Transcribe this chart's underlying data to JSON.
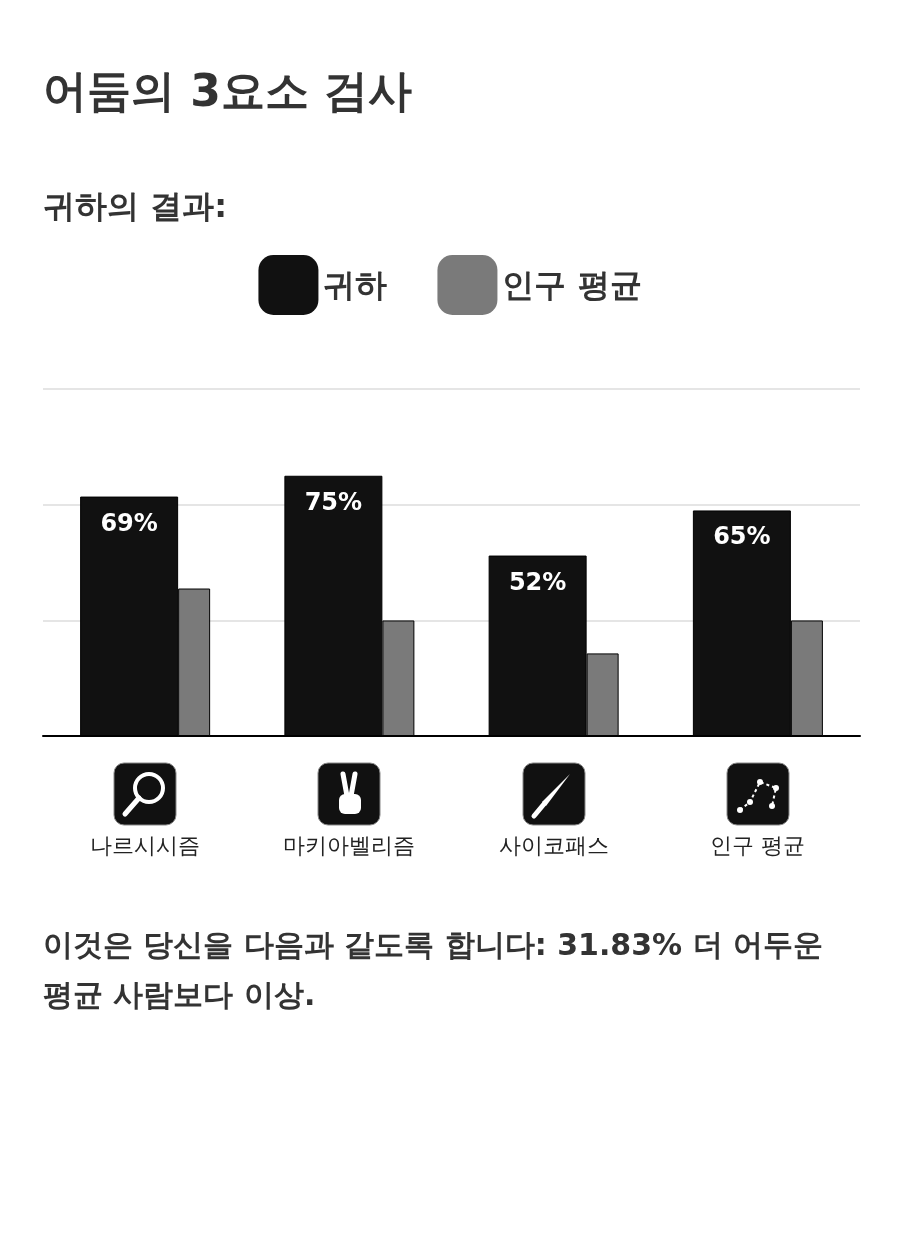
{
  "chart_data": {
    "type": "bar",
    "title": "어둠의 3요소 검사",
    "subtitle": "귀하의 결과:",
    "categories": [
      "나르시시즘",
      "마키아벨리즘",
      "사이코패스",
      "인구 평균"
    ],
    "series": [
      {
        "name": "귀하",
        "color": "#111111",
        "values": [
          69,
          75,
          52,
          65
        ],
        "value_labels": [
          "69%",
          "75%",
          "52%",
          "65%"
        ]
      },
      {
        "name": "인구 평균",
        "color": "#7a7a7a",
        "values": [
          42.5,
          33.3,
          23.8,
          33.3
        ]
      }
    ],
    "ylim": [
      0,
      100
    ],
    "yticks": [
      0,
      {
        "value": 33.33,
        "label": null
      },
      {
        "value": 66.67,
        "label": null
      },
      {
        "value": 100,
        "label": null
      }
    ],
    "grid": "y",
    "legend": "top",
    "tick_labels": "x",
    "annotations": [
      "이것은 당신을 다음과 같도록 합니다: 31.83% 더 어두운 평균 사람보다 이상."
    ]
  }
}
